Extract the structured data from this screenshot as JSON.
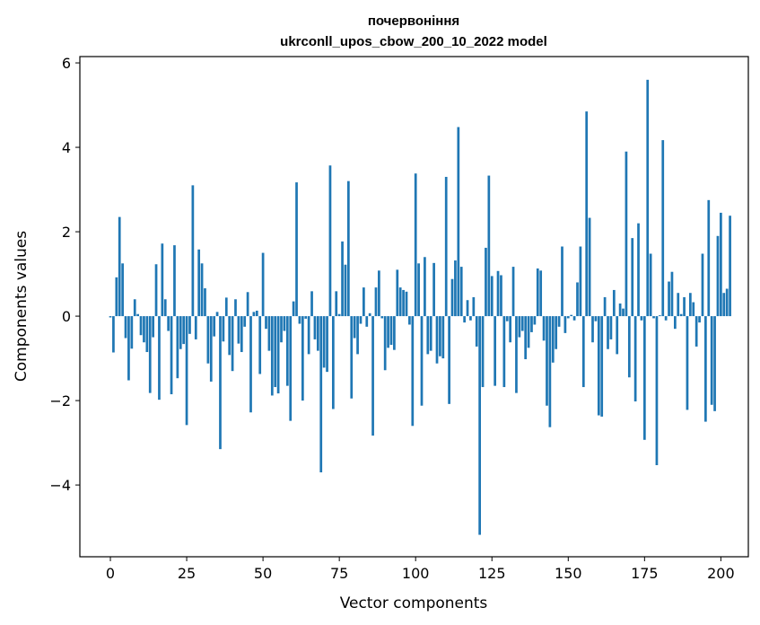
{
  "chart_data": {
    "type": "bar",
    "title": [
      "почервоніння",
      "ukrconll_upos_cbow_200_10_2022 model"
    ],
    "xlabel": "Vector components",
    "ylabel": "Components values",
    "xlim": [
      -10,
      209
    ],
    "ylim": [
      -5.7,
      6.15
    ],
    "xticks": [
      0,
      25,
      50,
      75,
      100,
      125,
      150,
      175,
      200
    ],
    "xtick_labels": [
      "0",
      "25",
      "50",
      "75",
      "100",
      "125",
      "150",
      "175",
      "200"
    ],
    "yticks": [
      -4,
      -2,
      0,
      2,
      4,
      6
    ],
    "ytick_labels": [
      "−4",
      "−2",
      "0",
      "2",
      "4",
      "6"
    ],
    "grid": false,
    "bar_color": "#1f77b4",
    "values": [
      -0.03,
      -0.86,
      0.92,
      2.35,
      1.25,
      -0.52,
      -1.52,
      -0.77,
      0.4,
      0.05,
      -0.45,
      -0.62,
      -0.85,
      -1.82,
      -0.5,
      1.23,
      -1.98,
      1.72,
      0.4,
      -0.35,
      -1.85,
      1.68,
      -1.47,
      -0.78,
      -0.66,
      -2.58,
      -0.42,
      3.1,
      -0.55,
      1.58,
      1.25,
      0.66,
      -1.12,
      -1.55,
      -0.48,
      0.1,
      -3.15,
      -0.6,
      0.44,
      -0.92,
      -1.3,
      0.4,
      -0.65,
      -0.85,
      -0.25,
      0.57,
      -2.28,
      0.1,
      0.13,
      -1.37,
      1.5,
      -0.3,
      -0.82,
      -1.88,
      -1.68,
      -1.83,
      -0.62,
      -0.35,
      -1.65,
      -2.48,
      0.35,
      3.17,
      -0.18,
      -2.0,
      -0.06,
      -0.9,
      0.59,
      -0.55,
      -0.82,
      -3.7,
      -1.22,
      -1.32,
      3.57,
      -2.2,
      0.59,
      0.05,
      1.77,
      1.22,
      3.2,
      -1.95,
      -0.52,
      -0.9,
      -0.18,
      0.68,
      -0.25,
      0.07,
      -2.83,
      0.68,
      1.08,
      -0.05,
      -1.28,
      -0.75,
      -0.68,
      -0.8,
      1.1,
      0.68,
      0.62,
      0.58,
      -0.2,
      -2.6,
      3.38,
      1.25,
      -2.12,
      1.4,
      -0.9,
      -0.82,
      1.26,
      -1.12,
      -0.95,
      -1.0,
      3.3,
      -2.08,
      0.88,
      1.32,
      4.48,
      1.17,
      -0.15,
      0.38,
      -0.1,
      0.45,
      -0.72,
      -5.18,
      -1.68,
      1.62,
      3.33,
      0.95,
      -1.65,
      1.07,
      0.97,
      -1.68,
      -0.12,
      -0.62,
      1.17,
      -1.82,
      -0.5,
      -0.35,
      -1.02,
      -0.75,
      -0.38,
      -0.2,
      1.13,
      1.08,
      -0.58,
      -2.12,
      -2.63,
      -1.1,
      -0.78,
      -0.25,
      1.65,
      -0.4,
      -0.05,
      0.03,
      -0.1,
      0.8,
      1.65,
      -1.68,
      4.85,
      2.33,
      -0.62,
      -0.12,
      -2.35,
      -2.38,
      0.45,
      -0.78,
      -0.55,
      0.62,
      -0.9,
      0.3,
      0.18,
      3.9,
      -1.45,
      1.85,
      -2.02,
      2.2,
      -0.1,
      -2.93,
      5.6,
      1.48,
      -0.05,
      -3.53,
      0.02,
      4.17,
      -0.1,
      0.82,
      1.05,
      -0.3,
      0.55,
      0.05,
      0.45,
      -2.22,
      0.55,
      0.33,
      -0.72,
      -0.15,
      1.48,
      -2.5,
      2.75,
      -2.1,
      -2.25,
      1.9,
      2.45,
      0.55,
      0.65,
      2.38
    ]
  }
}
